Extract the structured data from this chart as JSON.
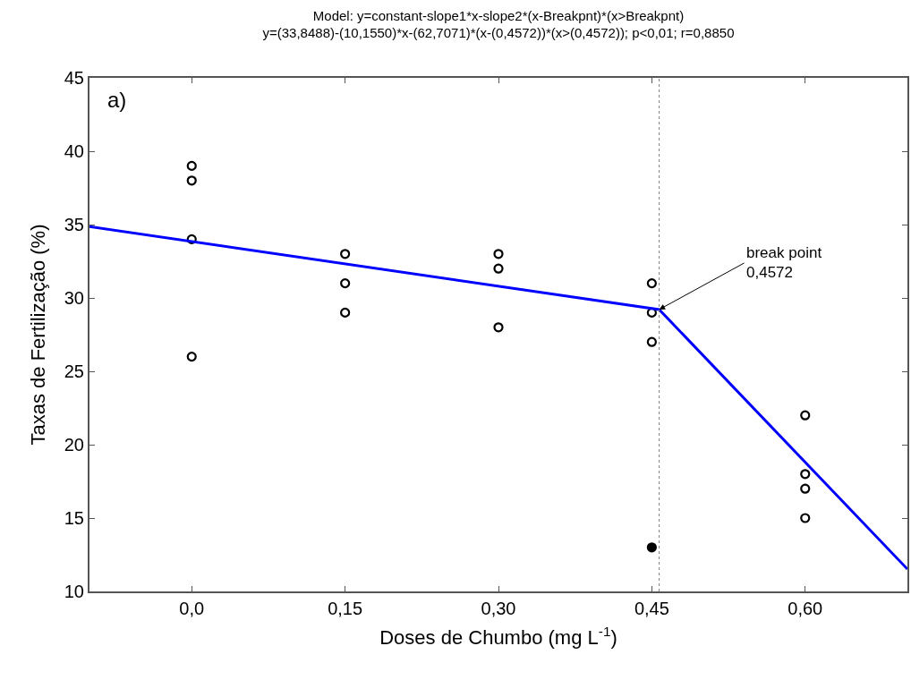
{
  "chart_data": {
    "type": "scatter",
    "title": "Model: y=constant-slope1*x-slope2*(x-Breakpnt)*(x>Breakpnt)",
    "subtitle": "y=(33,8488)-(10,1550)*x-(62,7071)*(x-(0,4572))*(x>(0,4572)); p<0,01; r=0,8850",
    "xlabel": "Doses de Chumbo (mg L$^{-1}$)",
    "ylabel": "Taxas de Fertilização (%)",
    "xlim": [
      -0.1,
      0.7
    ],
    "xticks": [
      {
        "value": 0,
        "label": "0,0"
      },
      {
        "value": 0.15,
        "label": "0,15"
      },
      {
        "value": 0.3,
        "label": "0,30"
      },
      {
        "value": 0.45,
        "label": "0,45"
      },
      {
        "value": 0.6,
        "label": "0,60"
      }
    ],
    "ylim": [
      10,
      45
    ],
    "yticks": [
      10,
      15,
      20,
      25,
      30,
      35,
      40,
      45
    ],
    "series": [
      {
        "marker": "circle",
        "color": "#000000",
        "x": [
          0,
          0,
          0,
          0,
          0.15,
          0.15,
          0.15,
          0.3,
          0.3,
          0.3,
          0.45,
          0.45,
          0.45,
          0.6,
          0.6,
          0.6,
          0.6
        ],
        "values": [
          39,
          38,
          34,
          26,
          33,
          31,
          29,
          33,
          32,
          28,
          31,
          29,
          27,
          22,
          18,
          17,
          15
        ]
      },
      {
        "marker": "circle",
        "color": "#000000",
        "x": [
          0.45
        ],
        "values": [
          13
        ]
      },
      {
        "type": "line",
        "marker": "none",
        "line_style": "solid",
        "color": "#0000ff",
        "x": [
          -0.1,
          0.4572,
          0.7
        ],
        "values": [
          34.86,
          29.21,
          11.52
        ]
      }
    ],
    "ref_lines": [
      {
        "axis": "x",
        "value": 0.4572,
        "color": "#808080",
        "line_style": "dotted"
      }
    ],
    "annotations": [
      "a)",
      {
        "text": "break point\n0,4572",
        "x": 0.4572,
        "y": 29.21
      }
    ]
  }
}
